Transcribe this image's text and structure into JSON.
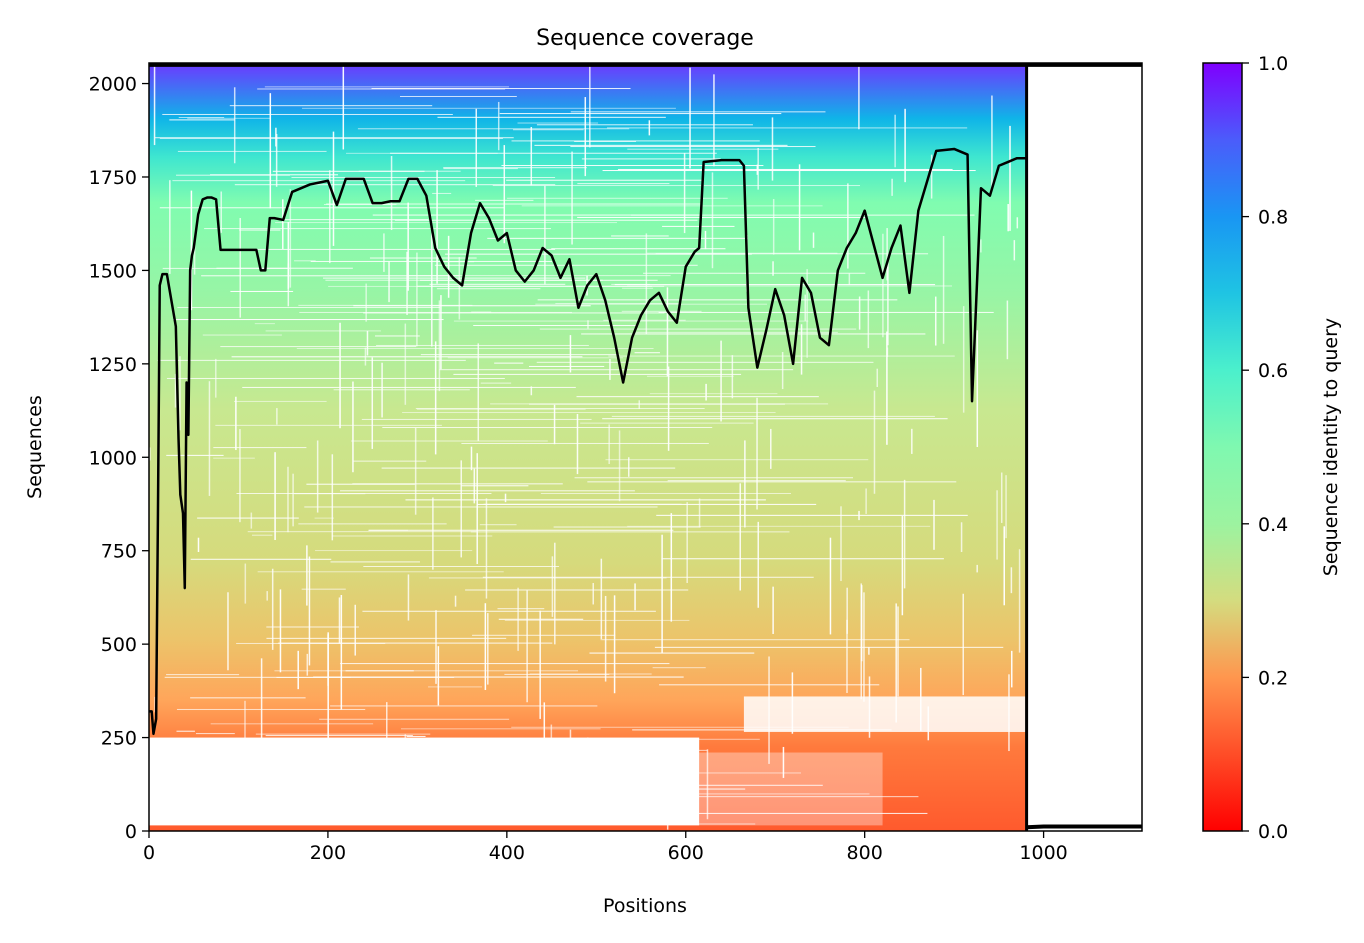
{
  "chart_data": {
    "type": "heatmap",
    "title": "Sequence coverage",
    "xlabel": "Positions",
    "ylabel": "Sequences",
    "xlim": [
      0,
      1110
    ],
    "ylim": [
      0,
      2055
    ],
    "x_ticks": [
      0,
      200,
      400,
      600,
      800,
      1000
    ],
    "y_ticks": [
      0,
      250,
      500,
      750,
      1000,
      1250,
      1500,
      1750,
      2000
    ],
    "alignment_length": 981,
    "colormap": "rainbow_r",
    "colorbar": {
      "label": "Sequence identity to query",
      "range": [
        0,
        1
      ],
      "ticks": [
        0.0,
        0.2,
        0.4,
        0.6,
        0.8,
        1.0
      ],
      "tick_labels": [
        "0.0",
        "0.2",
        "0.4",
        "0.6",
        "0.8",
        "1.0"
      ]
    },
    "identity_bands": [
      {
        "seq_from": 0,
        "seq_to": 250,
        "identity": 0.1
      },
      {
        "seq_from": 250,
        "seq_to": 400,
        "identity": 0.18
      },
      {
        "seq_from": 400,
        "seq_to": 550,
        "identity": 0.25
      },
      {
        "seq_from": 550,
        "seq_to": 800,
        "identity": 0.31
      },
      {
        "seq_from": 800,
        "seq_to": 1200,
        "identity": 0.36
      },
      {
        "seq_from": 1200,
        "seq_to": 1500,
        "identity": 0.4
      },
      {
        "seq_from": 1500,
        "seq_to": 1750,
        "identity": 0.47
      },
      {
        "seq_from": 1750,
        "seq_to": 1850,
        "identity": 0.58
      },
      {
        "seq_from": 1850,
        "seq_to": 1950,
        "identity": 0.72
      },
      {
        "seq_from": 1950,
        "seq_to": 2050,
        "identity": 0.88
      }
    ],
    "coverage_line": {
      "x": [
        0,
        3,
        5,
        8,
        10,
        12,
        15,
        20,
        25,
        30,
        33,
        35,
        38,
        40,
        42,
        44,
        46,
        48,
        50,
        55,
        60,
        65,
        70,
        75,
        80,
        90,
        100,
        110,
        120,
        125,
        130,
        135,
        140,
        150,
        160,
        170,
        180,
        190,
        200,
        210,
        220,
        230,
        240,
        250,
        260,
        270,
        280,
        290,
        300,
        310,
        320,
        330,
        340,
        350,
        360,
        370,
        380,
        390,
        400,
        410,
        420,
        430,
        440,
        450,
        460,
        470,
        480,
        490,
        500,
        510,
        520,
        530,
        540,
        550,
        560,
        570,
        580,
        590,
        600,
        610,
        615,
        620,
        640,
        660,
        665,
        670,
        680,
        690,
        700,
        710,
        720,
        730,
        740,
        750,
        760,
        770,
        780,
        790,
        800,
        810,
        820,
        830,
        840,
        850,
        860,
        870,
        880,
        900,
        915,
        920,
        930,
        940,
        950,
        960,
        970,
        981
      ],
      "y": [
        320,
        320,
        260,
        300,
        850,
        1460,
        1490,
        1490,
        1420,
        1350,
        1050,
        900,
        850,
        650,
        1200,
        1060,
        1500,
        1540,
        1560,
        1650,
        1690,
        1695,
        1695,
        1690,
        1555,
        1555,
        1555,
        1555,
        1555,
        1500,
        1500,
        1640,
        1640,
        1635,
        1710,
        1720,
        1730,
        1735,
        1740,
        1675,
        1745,
        1745,
        1745,
        1680,
        1680,
        1685,
        1685,
        1745,
        1745,
        1700,
        1560,
        1510,
        1480,
        1460,
        1600,
        1680,
        1640,
        1580,
        1600,
        1500,
        1470,
        1500,
        1560,
        1540,
        1480,
        1530,
        1400,
        1460,
        1490,
        1420,
        1320,
        1200,
        1320,
        1380,
        1420,
        1440,
        1390,
        1360,
        1510,
        1550,
        1560,
        1790,
        1795,
        1795,
        1780,
        1400,
        1240,
        1340,
        1450,
        1380,
        1250,
        1480,
        1440,
        1320,
        1300,
        1500,
        1560,
        1600,
        1660,
        1570,
        1480,
        1560,
        1620,
        1440,
        1660,
        1740,
        1820,
        1825,
        1810,
        1150,
        1720,
        1700,
        1780,
        1790,
        1800,
        1800
      ]
    },
    "tail_line": {
      "x": [
        981,
        1000,
        1110
      ],
      "y": [
        10,
        12,
        12
      ]
    }
  }
}
